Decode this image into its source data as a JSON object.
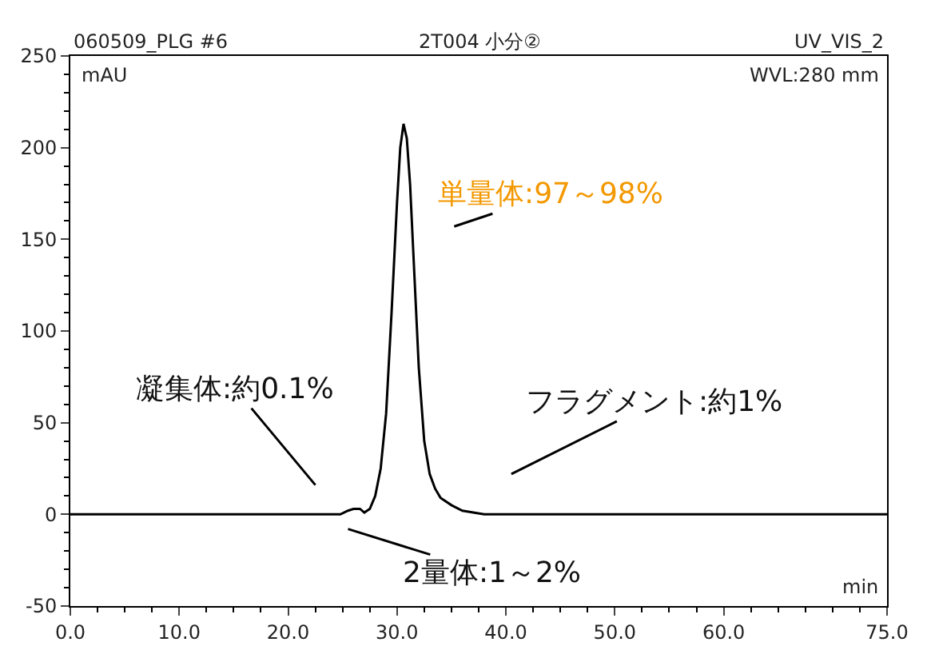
{
  "chart_data": {
    "type": "line",
    "title": "2T004 小分②",
    "xlabel": "min",
    "ylabel": "mAU",
    "x": [
      0,
      24.8,
      25.5,
      26,
      26.6,
      27,
      27.5,
      28,
      28.5,
      29,
      29.5,
      30,
      30.3,
      30.6,
      30.9,
      31.2,
      31.6,
      32,
      32.5,
      33,
      33.5,
      34,
      35,
      36,
      37,
      38,
      75
    ],
    "series": [
      {
        "color": "#000000",
        "values": [
          0,
          0,
          2,
          3,
          3,
          1,
          3,
          10,
          25,
          55,
          110,
          170,
          200,
          213,
          205,
          180,
          130,
          80,
          40,
          22,
          14,
          9,
          5,
          2,
          1,
          0,
          0
        ]
      }
    ],
    "xlim": [
      0,
      75
    ],
    "ylim": [
      -50,
      250
    ],
    "xticks": [
      {
        "value": 0,
        "label": "0.0"
      },
      {
        "value": 10,
        "label": "10.0"
      },
      {
        "value": 20,
        "label": "20.0"
      },
      {
        "value": 30,
        "label": "30.0"
      },
      {
        "value": 40,
        "label": "40.0"
      },
      {
        "value": 50,
        "label": "50.0"
      },
      {
        "value": 60,
        "label": "60.0"
      },
      {
        "value": 75,
        "label": "75.0"
      }
    ],
    "yticks": [
      -50,
      0,
      50,
      100,
      150,
      200,
      250
    ],
    "annotations": [
      "単量体:97～98%",
      "凝集体:約0.1%",
      "2量体:1～2%",
      "フラグメント:約1%",
      "060509_PLG #6",
      "UV_VIS_2",
      "WVL:280 mm"
    ],
    "marker": "none",
    "line_style": "solid"
  }
}
